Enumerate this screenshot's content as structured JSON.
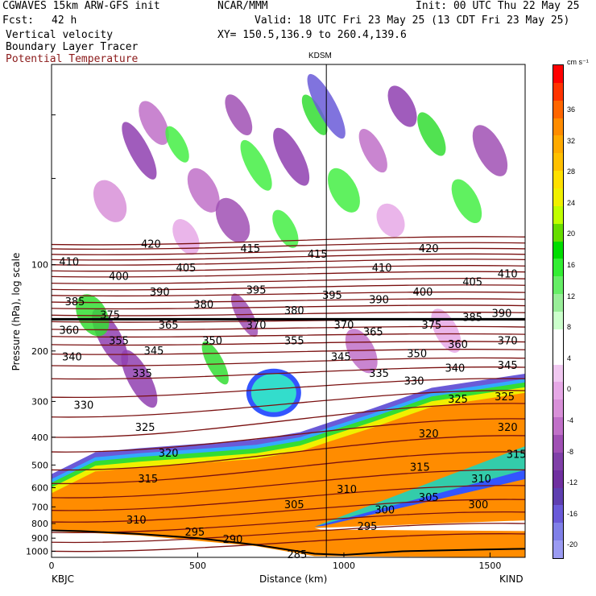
{
  "header": {
    "model": "CGWAVES 15km ARW-GFS init",
    "center": "NCAR/MMM",
    "init": "Init: 00 UTC Thu 22 May 25",
    "fcst_label": "Fcst:",
    "fcst_value": "42 h",
    "valid": "Valid: 18 UTC Fri 23 May 25 (13 CDT Fri 23 May 25)",
    "field1": "Vertical velocity",
    "field2": "Boundary Layer Tracer",
    "field3": "Potential Temperature",
    "xy": "XY= 150.5,136.9 to 260.4,139.6"
  },
  "markers": {
    "station_top": "KDSM",
    "left_station": "KBJC",
    "right_station": "KIND"
  },
  "colorbar": {
    "unit": "cm s⁻¹",
    "ticks": [
      "36",
      "32",
      "28",
      "24",
      "20",
      "16",
      "12",
      "8",
      "4",
      "0",
      "-4",
      "-8",
      "-12",
      "-16",
      "-20"
    ],
    "colors": [
      "#ff0000",
      "#ff3300",
      "#ff6600",
      "#ff8c00",
      "#ffaa00",
      "#ffc000",
      "#ffe000",
      "#f0f000",
      "#c0ff00",
      "#66dd00",
      "#00dd00",
      "#33ee33",
      "#66ee66",
      "#99ee99",
      "#ccffcc",
      "#ffffff",
      "#ffffff",
      "#f0c8f0",
      "#e6a8e6",
      "#d890d8",
      "#c070c8",
      "#a050b4",
      "#8040a8",
      "#7030a0",
      "#5f3fb0",
      "#6a5ad8",
      "#8080e8",
      "#9b9bf2"
    ]
  },
  "colors": {
    "theta": "#7a1010",
    "tracer_orange": "#ff8c00",
    "w_green": "#33dd33",
    "w_purple": "#9040b0"
  },
  "chart_data": {
    "type": "cross-section",
    "title": "CGWAVES 15km ARW-GFS init",
    "xlabel": "Distance (km)",
    "ylabel": "Pressure (hPa), log scale",
    "xlim": [
      0,
      1620
    ],
    "ylim": [
      1050,
      20
    ],
    "x_ticks": [
      "0",
      "500",
      "1000",
      "1500"
    ],
    "y_ticks": [
      "100",
      "200",
      "300",
      "400",
      "500",
      "600",
      "700",
      "800",
      "900",
      "1000"
    ],
    "y_tick_values": [
      100,
      200,
      300,
      400,
      500,
      600,
      700,
      800,
      900,
      1000
    ],
    "station_x_km": 940,
    "tropopause_hpa": 155,
    "theta_labels": [
      {
        "t": "420",
        "x": 340,
        "p": 85
      },
      {
        "t": "415",
        "x": 680,
        "p": 88
      },
      {
        "t": "415",
        "x": 910,
        "p": 92
      },
      {
        "t": "420",
        "x": 1290,
        "p": 88
      },
      {
        "t": "410",
        "x": 60,
        "p": 98
      },
      {
        "t": "400",
        "x": 230,
        "p": 110
      },
      {
        "t": "405",
        "x": 460,
        "p": 103
      },
      {
        "t": "410",
        "x": 1130,
        "p": 103
      },
      {
        "t": "405",
        "x": 1440,
        "p": 115
      },
      {
        "t": "410",
        "x": 1560,
        "p": 108
      },
      {
        "t": "390",
        "x": 370,
        "p": 125
      },
      {
        "t": "395",
        "x": 700,
        "p": 123
      },
      {
        "t": "395",
        "x": 960,
        "p": 128
      },
      {
        "t": "390",
        "x": 1120,
        "p": 133
      },
      {
        "t": "400",
        "x": 1270,
        "p": 125
      },
      {
        "t": "385",
        "x": 80,
        "p": 135
      },
      {
        "t": "380",
        "x": 520,
        "p": 138
      },
      {
        "t": "380",
        "x": 830,
        "p": 145
      },
      {
        "t": "390",
        "x": 1540,
        "p": 148
      },
      {
        "t": "375",
        "x": 200,
        "p": 150
      },
      {
        "t": "385",
        "x": 1440,
        "p": 153
      },
      {
        "t": "365",
        "x": 400,
        "p": 163
      },
      {
        "t": "370",
        "x": 700,
        "p": 163
      },
      {
        "t": "370",
        "x": 1000,
        "p": 163
      },
      {
        "t": "375",
        "x": 1300,
        "p": 163
      },
      {
        "t": "360",
        "x": 60,
        "p": 170
      },
      {
        "t": "365",
        "x": 1100,
        "p": 172
      },
      {
        "t": "355",
        "x": 230,
        "p": 185
      },
      {
        "t": "350",
        "x": 550,
        "p": 185
      },
      {
        "t": "355",
        "x": 830,
        "p": 185
      },
      {
        "t": "370",
        "x": 1560,
        "p": 185
      },
      {
        "t": "360",
        "x": 1390,
        "p": 190
      },
      {
        "t": "345",
        "x": 350,
        "p": 200
      },
      {
        "t": "345",
        "x": 990,
        "p": 210
      },
      {
        "t": "350",
        "x": 1250,
        "p": 205
      },
      {
        "t": "340",
        "x": 70,
        "p": 210
      },
      {
        "t": "340",
        "x": 1380,
        "p": 230
      },
      {
        "t": "345",
        "x": 1560,
        "p": 225
      },
      {
        "t": "335",
        "x": 310,
        "p": 240
      },
      {
        "t": "335",
        "x": 1120,
        "p": 240
      },
      {
        "t": "330",
        "x": 1240,
        "p": 255
      },
      {
        "t": "325",
        "x": 1390,
        "p": 295
      },
      {
        "t": "325",
        "x": 1550,
        "p": 290
      },
      {
        "t": "330",
        "x": 110,
        "p": 310
      },
      {
        "t": "325",
        "x": 320,
        "p": 370
      },
      {
        "t": "320",
        "x": 400,
        "p": 455
      },
      {
        "t": "320",
        "x": 1290,
        "p": 390
      },
      {
        "t": "320",
        "x": 1560,
        "p": 370
      },
      {
        "t": "315",
        "x": 1590,
        "p": 460
      },
      {
        "t": "315",
        "x": 1260,
        "p": 510
      },
      {
        "t": "315",
        "x": 330,
        "p": 560
      },
      {
        "t": "310",
        "x": 1470,
        "p": 560
      },
      {
        "t": "310",
        "x": 1010,
        "p": 610
      },
      {
        "t": "305",
        "x": 1290,
        "p": 650
      },
      {
        "t": "305",
        "x": 830,
        "p": 690
      },
      {
        "t": "300",
        "x": 1140,
        "p": 720
      },
      {
        "t": "300",
        "x": 1460,
        "p": 690
      },
      {
        "t": "310",
        "x": 290,
        "p": 780
      },
      {
        "t": "295",
        "x": 490,
        "p": 860
      },
      {
        "t": "290",
        "x": 620,
        "p": 910
      },
      {
        "t": "295",
        "x": 1080,
        "p": 820
      },
      {
        "t": "285",
        "x": 840,
        "p": 1030
      }
    ],
    "theta_lines": [
      {
        "p0": 85,
        "p1": 80
      },
      {
        "p0": 88,
        "p1": 84
      },
      {
        "p0": 92,
        "p1": 88
      },
      {
        "p0": 96,
        "p1": 92
      },
      {
        "p0": 100,
        "p1": 96
      },
      {
        "p0": 105,
        "p1": 101
      },
      {
        "p0": 110,
        "p1": 106
      },
      {
        "p0": 116,
        "p1": 112
      },
      {
        "p0": 122,
        "p1": 118
      },
      {
        "p0": 128,
        "p1": 125
      },
      {
        "p0": 135,
        "p1": 132
      },
      {
        "p0": 142,
        "p1": 139
      },
      {
        "p0": 150,
        "p1": 147
      },
      {
        "p0": 158,
        "p1": 156
      },
      {
        "p0": 168,
        "p1": 165
      },
      {
        "p0": 178,
        "p1": 175
      },
      {
        "p0": 190,
        "p1": 186
      },
      {
        "p0": 205,
        "p1": 198
      },
      {
        "p0": 225,
        "p1": 212
      },
      {
        "p0": 250,
        "p1": 228
      },
      {
        "p0": 290,
        "p1": 250
      },
      {
        "p0": 340,
        "p1": 275
      },
      {
        "p0": 400,
        "p1": 305
      },
      {
        "p0": 450,
        "p1": 345
      },
      {
        "p0": 520,
        "p1": 395
      },
      {
        "p0": 580,
        "p1": 450
      },
      {
        "p0": 650,
        "p1": 520
      },
      {
        "p0": 720,
        "p1": 590
      },
      {
        "p0": 790,
        "p1": 660
      },
      {
        "p0": 860,
        "p1": 730
      },
      {
        "p0": 930,
        "p1": 800
      },
      {
        "p0": 1000,
        "p1": 870
      }
    ],
    "terrain_p": [
      [
        0,
        845
      ],
      [
        100,
        850
      ],
      [
        300,
        870
      ],
      [
        500,
        900
      ],
      [
        700,
        950
      ],
      [
        900,
        1020
      ],
      [
        1000,
        1030
      ],
      [
        1200,
        1000
      ],
      [
        1400,
        990
      ],
      [
        1620,
        980
      ]
    ]
  }
}
